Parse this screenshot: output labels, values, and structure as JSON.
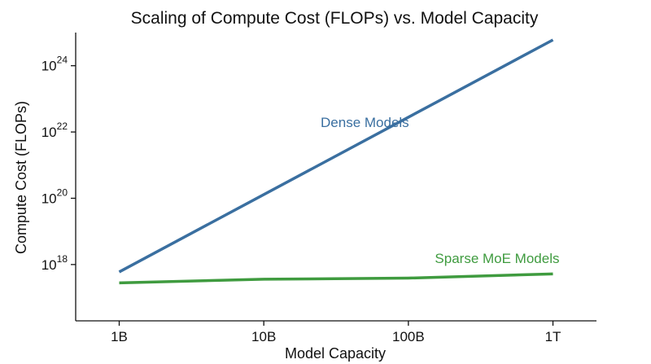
{
  "chart_data": {
    "type": "line",
    "title": "Scaling of Compute Cost (FLOPs) vs. Model Capacity",
    "xlabel": "Model Capacity",
    "ylabel": "Compute Cost (FLOPs)",
    "x_scale": "log",
    "y_scale": "log",
    "x_ticks": [
      {
        "value": 1000000000.0,
        "label": "1B"
      },
      {
        "value": 10000000000.0,
        "label": "10B"
      },
      {
        "value": 100000000000.0,
        "label": "100B"
      },
      {
        "value": 1000000000000.0,
        "label": "1T"
      }
    ],
    "y_ticks": [
      {
        "value": 1e+18,
        "base": "10",
        "exp": "18"
      },
      {
        "value": 1e+20,
        "base": "10",
        "exp": "20"
      },
      {
        "value": 1e+22,
        "base": "10",
        "exp": "22"
      },
      {
        "value": 1e+24,
        "base": "10",
        "exp": "24"
      }
    ],
    "xlim": [
      500000000.0,
      2000000000000.0
    ],
    "ylim": [
      2e+16,
      1e+25
    ],
    "grid": false,
    "legend": "none",
    "series": [
      {
        "name": "Dense Models",
        "color": "#3a6fa0",
        "points": [
          {
            "x": 1000000000.0,
            "y": 6e+17
          },
          {
            "x": 1000000000000.0,
            "y": 6e+24
          }
        ]
      },
      {
        "name": "Sparse MoE Models",
        "color": "#3f9b3f",
        "points": [
          {
            "x": 1000000000.0,
            "y": 2.8e+17
          },
          {
            "x": 10000000000.0,
            "y": 3.6e+17
          },
          {
            "x": 100000000000.0,
            "y": 3.9e+17
          },
          {
            "x": 1000000000000.0,
            "y": 5.2e+17
          }
        ]
      }
    ],
    "annotations": [
      {
        "text": "Dense Models",
        "color": "#3a6fa0",
        "x": 50000000000.0,
        "y": 1.4e+22
      },
      {
        "text": "Sparse MoE Models",
        "color": "#3f9b3f",
        "x": 1000000000000.0,
        "y": 1.1e+18
      }
    ]
  }
}
